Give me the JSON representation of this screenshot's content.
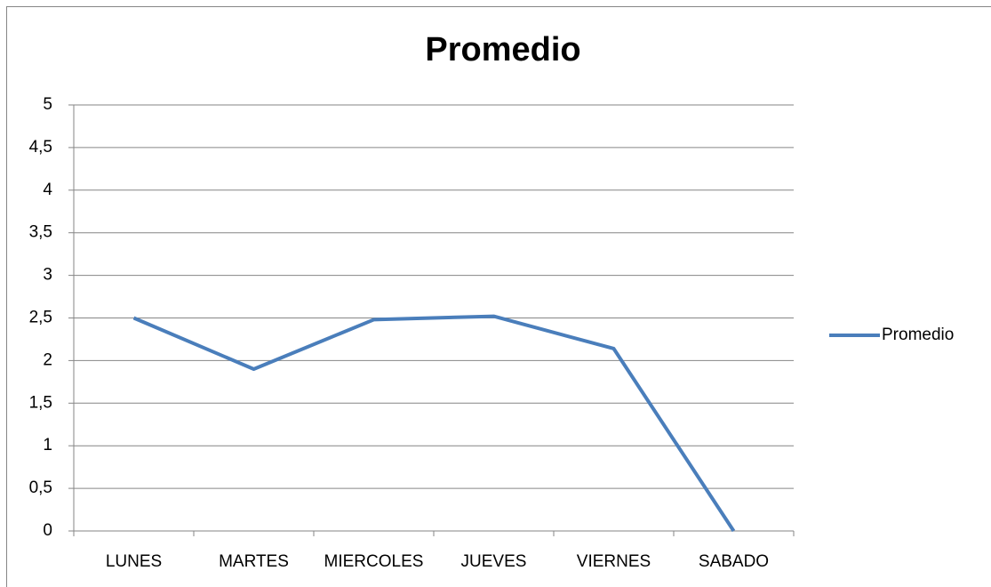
{
  "chart_data": {
    "type": "line",
    "title": "Promedio",
    "categories": [
      "LUNES",
      "MARTES",
      "MIERCOLES",
      "JUEVES",
      "VIERNES",
      "SABADO"
    ],
    "series": [
      {
        "name": "Promedio",
        "color": "#4a7ebb",
        "values": [
          2.5,
          1.9,
          2.48,
          2.52,
          2.14,
          0
        ]
      }
    ],
    "ylim": [
      0,
      5
    ],
    "yticks": [
      0,
      {
        "value": 0.5,
        "label": "0,5"
      },
      1,
      {
        "value": 1.5,
        "label": "1,5"
      },
      2,
      {
        "value": 2.5,
        "label": "2,5"
      },
      3,
      {
        "value": 3.5,
        "label": "3,5"
      },
      4,
      {
        "value": 4.5,
        "label": "4,5"
      },
      5
    ],
    "grid": true,
    "legend": "right"
  }
}
